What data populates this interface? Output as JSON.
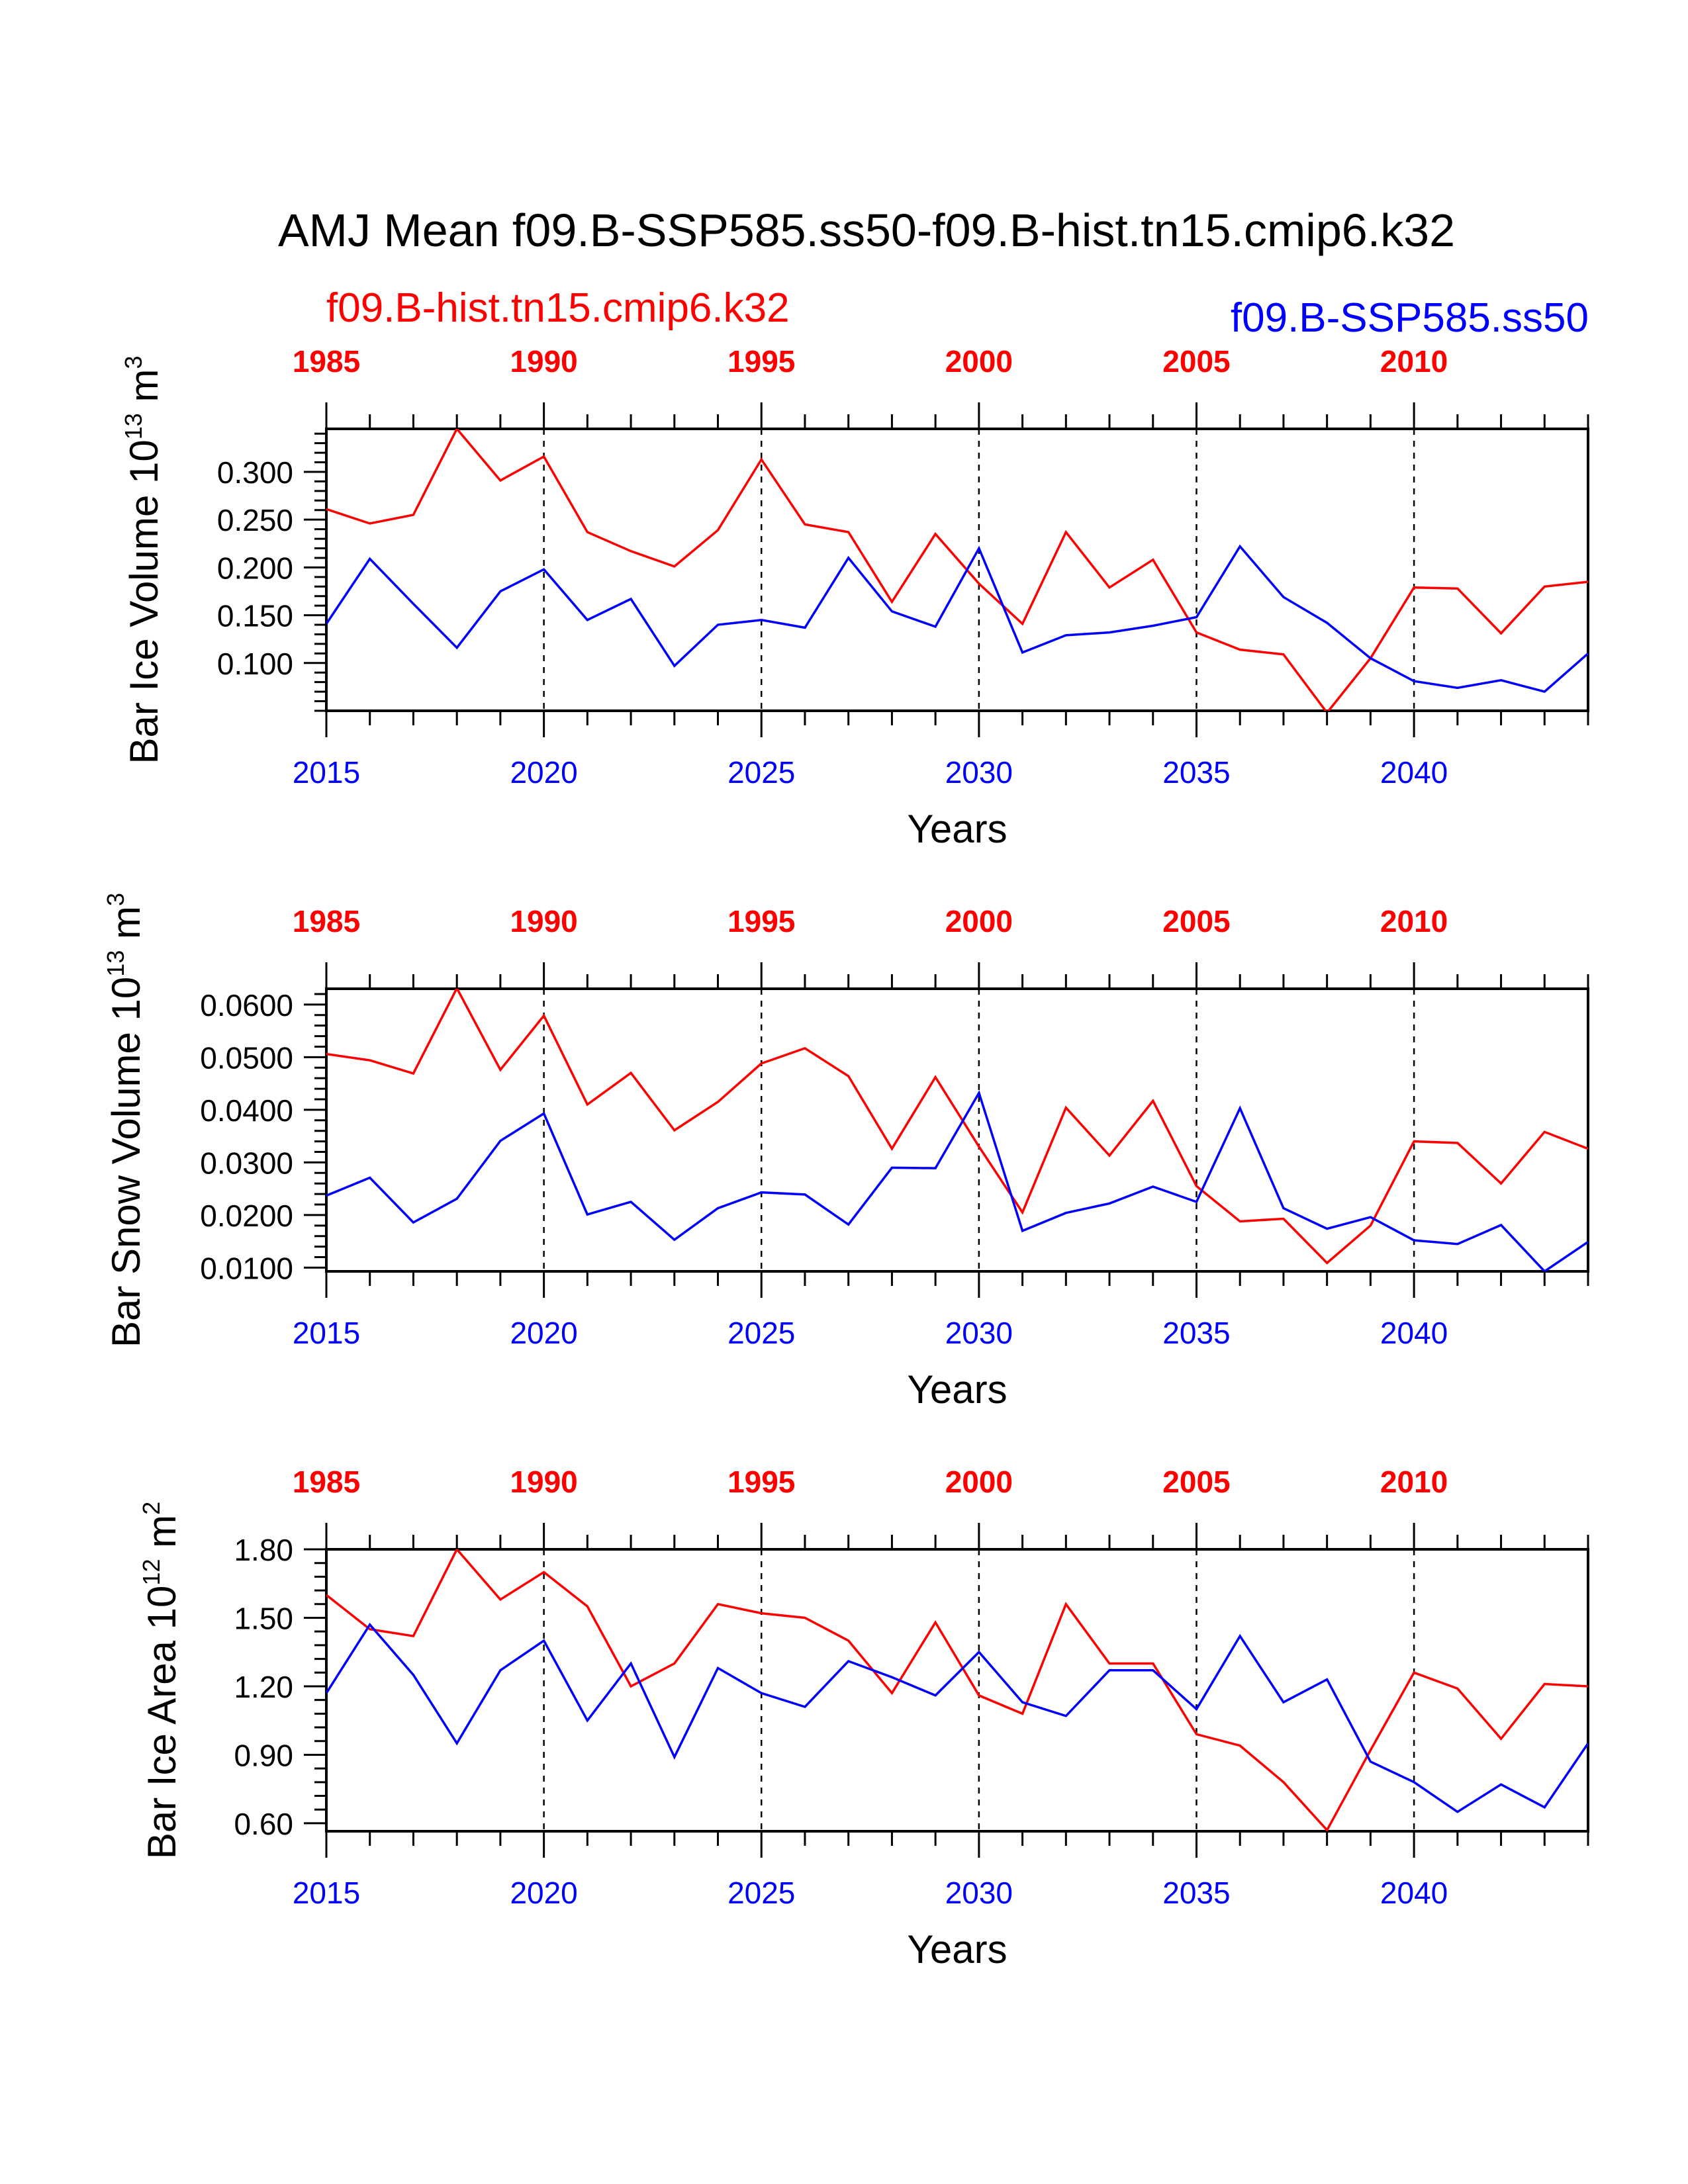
{
  "figure": {
    "title": "AMJ Mean f09.B-SSP585.ss50-f09.B-hist.tn15.cmip6.k32",
    "legend_red": "f09.B-hist.tn15.cmip6.k32",
    "legend_blue": "f09.B-SSP585.ss50"
  },
  "colors": {
    "red": "#ff0000",
    "blue": "#0000ff",
    "axis": "#000000"
  },
  "chart_data": [
    {
      "type": "line",
      "xlabel": "Years",
      "ylabel": "Bar Ice Volume",
      "ylabel_unit_base": "10",
      "ylabel_unit_exp": "13",
      "ylabel_unit_tail": "m",
      "ylabel_unit_tail_exp": "3",
      "ylim": [
        0.05,
        0.345
      ],
      "yticks": [
        0.1,
        0.15,
        0.2,
        0.25,
        0.3
      ],
      "ytick_labels": [
        "0.100",
        "0.150",
        "0.200",
        "0.250",
        "0.300"
      ],
      "xlim": [
        2015,
        2044
      ],
      "xticks": [
        2015,
        2020,
        2025,
        2030,
        2035,
        2040
      ],
      "xtick_labels": [
        "2015",
        "2020",
        "2025",
        "2030",
        "2035",
        "2040"
      ],
      "top_xticks": [
        2015,
        2020,
        2025,
        2030,
        2035,
        2040
      ],
      "top_xtick_labels": [
        "1985",
        "1990",
        "1995",
        "2000",
        "2005",
        "2010"
      ],
      "x": [
        2015,
        2016,
        2017,
        2018,
        2019,
        2020,
        2021,
        2022,
        2023,
        2024,
        2025,
        2026,
        2027,
        2028,
        2029,
        2030,
        2031,
        2032,
        2033,
        2034,
        2035,
        2036,
        2037,
        2038,
        2039,
        2040,
        2041,
        2042,
        2043,
        2044
      ],
      "series": [
        {
          "name": "f09.B-hist.tn15.cmip6.k32",
          "color": "red",
          "values": [
            0.261,
            0.246,
            0.255,
            0.345,
            0.291,
            0.316,
            0.237,
            0.217,
            0.201,
            0.239,
            0.313,
            0.245,
            0.237,
            0.164,
            0.235,
            0.183,
            0.141,
            0.237,
            0.179,
            0.208,
            0.132,
            0.114,
            0.109,
            0.048,
            0.105,
            0.179,
            0.178,
            0.131,
            0.18,
            0.185
          ]
        },
        {
          "name": "f09.B-SSP585.ss50",
          "color": "blue",
          "values": [
            0.141,
            0.209,
            0.162,
            0.116,
            0.175,
            0.198,
            0.145,
            0.167,
            0.097,
            0.14,
            0.145,
            0.137,
            0.21,
            0.154,
            0.138,
            0.22,
            0.111,
            0.129,
            0.132,
            0.139,
            0.148,
            0.222,
            0.169,
            0.142,
            0.105,
            0.081,
            0.074,
            0.082,
            0.07,
            0.11
          ]
        }
      ]
    },
    {
      "type": "line",
      "xlabel": "Years",
      "ylabel": "Bar Snow Volume",
      "ylabel_unit_base": "10",
      "ylabel_unit_exp": "13",
      "ylabel_unit_tail": "m",
      "ylabel_unit_tail_exp": "3",
      "ylim": [
        0.0093,
        0.063
      ],
      "yticks": [
        0.01,
        0.02,
        0.03,
        0.04,
        0.05,
        0.06
      ],
      "ytick_labels": [
        "0.0100",
        "0.0200",
        "0.0300",
        "0.0400",
        "0.0500",
        "0.0600"
      ],
      "xlim": [
        2015,
        2044
      ],
      "xticks": [
        2015,
        2020,
        2025,
        2030,
        2035,
        2040
      ],
      "xtick_labels": [
        "2015",
        "2020",
        "2025",
        "2030",
        "2035",
        "2040"
      ],
      "top_xticks": [
        2015,
        2020,
        2025,
        2030,
        2035,
        2040
      ],
      "top_xtick_labels": [
        "1985",
        "1990",
        "1995",
        "2000",
        "2005",
        "2010"
      ],
      "x": [
        2015,
        2016,
        2017,
        2018,
        2019,
        2020,
        2021,
        2022,
        2023,
        2024,
        2025,
        2026,
        2027,
        2028,
        2029,
        2030,
        2031,
        2032,
        2033,
        2034,
        2035,
        2036,
        2037,
        2038,
        2039,
        2040,
        2041,
        2042,
        2043,
        2044
      ],
      "series": [
        {
          "name": "f09.B-hist.tn15.cmip6.k32",
          "color": "red",
          "values": [
            0.0506,
            0.0494,
            0.0469,
            0.0631,
            0.0476,
            0.0579,
            0.041,
            0.047,
            0.0361,
            0.0415,
            0.0488,
            0.0517,
            0.0464,
            0.0326,
            0.0462,
            0.033,
            0.0205,
            0.0404,
            0.0313,
            0.0417,
            0.0255,
            0.0188,
            0.0193,
            0.0109,
            0.018,
            0.034,
            0.0337,
            0.026,
            0.0358,
            0.0326
          ]
        },
        {
          "name": "f09.B-SSP585.ss50",
          "color": "blue",
          "values": [
            0.0237,
            0.0271,
            0.0186,
            0.0231,
            0.0341,
            0.0393,
            0.0201,
            0.0225,
            0.0153,
            0.0213,
            0.0243,
            0.0239,
            0.0182,
            0.029,
            0.0289,
            0.0432,
            0.017,
            0.0204,
            0.0222,
            0.0254,
            0.0225,
            0.0403,
            0.0213,
            0.0174,
            0.0196,
            0.0152,
            0.0145,
            0.0181,
            0.0093,
            0.0149
          ]
        }
      ]
    },
    {
      "type": "line",
      "xlabel": "Years",
      "ylabel": "Bar Ice Area",
      "ylabel_unit_base": "10",
      "ylabel_unit_exp": "12",
      "ylabel_unit_tail": "m",
      "ylabel_unit_tail_exp": "2",
      "ylim": [
        0.565,
        1.8
      ],
      "yticks": [
        0.6,
        0.9,
        1.2,
        1.5,
        1.8
      ],
      "ytick_labels": [
        "0.60",
        "0.90",
        "1.20",
        "1.50",
        "1.80"
      ],
      "xlim": [
        2015,
        2044
      ],
      "xticks": [
        2015,
        2020,
        2025,
        2030,
        2035,
        2040
      ],
      "xtick_labels": [
        "2015",
        "2020",
        "2025",
        "2030",
        "2035",
        "2040"
      ],
      "top_xticks": [
        2015,
        2020,
        2025,
        2030,
        2035,
        2040
      ],
      "top_xtick_labels": [
        "1985",
        "1990",
        "1995",
        "2000",
        "2005",
        "2010"
      ],
      "x": [
        2015,
        2016,
        2017,
        2018,
        2019,
        2020,
        2021,
        2022,
        2023,
        2024,
        2025,
        2026,
        2027,
        2028,
        2029,
        2030,
        2031,
        2032,
        2033,
        2034,
        2035,
        2036,
        2037,
        2038,
        2039,
        2040,
        2041,
        2042,
        2043,
        2044
      ],
      "series": [
        {
          "name": "f09.B-hist.tn15.cmip6.k32",
          "color": "red",
          "values": [
            1.6,
            1.45,
            1.42,
            1.8,
            1.58,
            1.7,
            1.55,
            1.2,
            1.3,
            1.56,
            1.52,
            1.5,
            1.4,
            1.17,
            1.48,
            1.16,
            1.08,
            1.56,
            1.3,
            1.3,
            0.99,
            0.94,
            0.78,
            0.57,
            0.92,
            1.26,
            1.19,
            0.97,
            1.21,
            1.2
          ]
        },
        {
          "name": "f09.B-SSP585.ss50",
          "color": "blue",
          "values": [
            1.17,
            1.47,
            1.25,
            0.95,
            1.27,
            1.4,
            1.05,
            1.3,
            0.89,
            1.28,
            1.17,
            1.11,
            1.31,
            1.24,
            1.16,
            1.35,
            1.13,
            1.07,
            1.27,
            1.27,
            1.1,
            1.42,
            1.13,
            1.23,
            0.87,
            0.78,
            0.65,
            0.77,
            0.67,
            0.95
          ]
        }
      ]
    }
  ]
}
